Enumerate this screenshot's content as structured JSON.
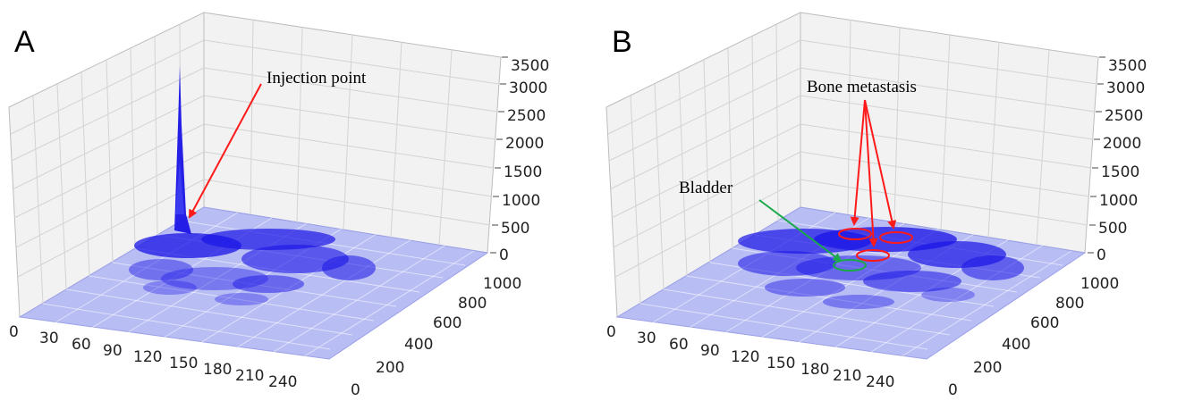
{
  "colors": {
    "pane": "#f2f2f2",
    "floor": "#b8bdf4",
    "density": "#1a14e6",
    "arrow_red": "#ff1a1a",
    "arrow_green": "#1aa84a",
    "grid": "#d3d3d3"
  },
  "chart_data": [
    {
      "type": "surface3d",
      "panel_label": "A",
      "x_ticks": [
        "0",
        "30",
        "60",
        "90",
        "120",
        "150",
        "180",
        "210",
        "240"
      ],
      "y_ticks": [
        "0",
        "200",
        "400",
        "600",
        "800",
        "1000"
      ],
      "z_ticks": [
        "0",
        "500",
        "1000",
        "1500",
        "2000",
        "2500",
        "3000",
        "3500"
      ],
      "zlim": [
        0,
        3500
      ],
      "annotations": [
        {
          "text": "Injection point",
          "color": "red",
          "points_to": "peak near x 30, y 950, z 3400"
        }
      ],
      "peak": {
        "x": 30,
        "y": 950,
        "z": 3400
      }
    },
    {
      "type": "surface3d",
      "panel_label": "B",
      "x_ticks": [
        "0",
        "30",
        "60",
        "90",
        "120",
        "150",
        "180",
        "210",
        "240"
      ],
      "y_ticks": [
        "0",
        "200",
        "400",
        "600",
        "800",
        "1000"
      ],
      "z_ticks": [
        "0",
        "500",
        "1000",
        "1500",
        "2000",
        "2500",
        "3000",
        "3500"
      ],
      "zlim": [
        0,
        3500
      ],
      "annotations": [
        {
          "text": "Bone metastasis",
          "color": "red",
          "targets": 3
        },
        {
          "text": "Bladder",
          "color": "green",
          "targets": 1
        }
      ]
    }
  ]
}
